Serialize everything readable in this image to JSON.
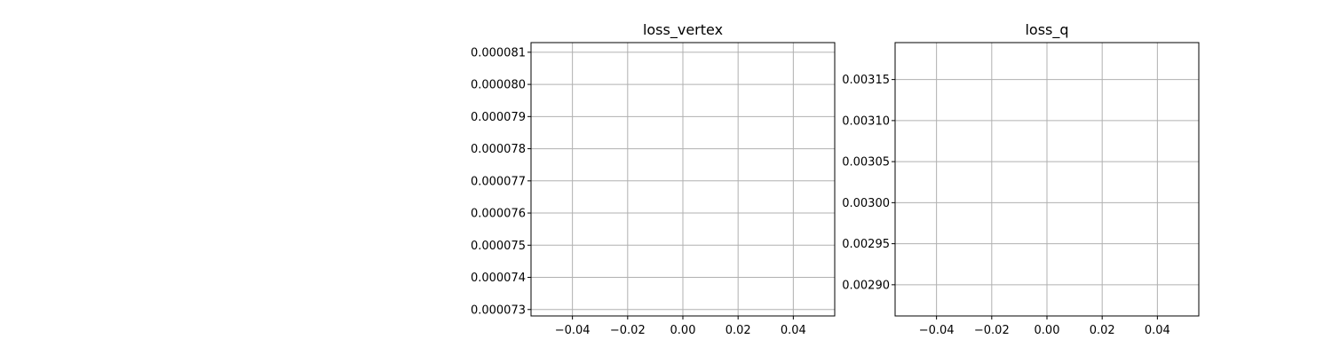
{
  "chart_data": [
    {
      "type": "line",
      "title": "loss_vertex",
      "xlabel": "",
      "ylabel": "",
      "grid": true,
      "xlim": [
        -0.055,
        0.055
      ],
      "ylim": [
        7.28e-05,
        8.13e-05
      ],
      "x_ticks": [
        -0.04,
        -0.02,
        0.0,
        0.02,
        0.04
      ],
      "x_tick_labels": [
        "−0.04",
        "−0.02",
        "0.00",
        "0.02",
        "0.04"
      ],
      "y_ticks": [
        7.3e-05,
        7.4e-05,
        7.5e-05,
        7.6e-05,
        7.7e-05,
        7.8e-05,
        7.9e-05,
        8e-05,
        8.1e-05
      ],
      "y_tick_labels": [
        "0.000073",
        "0.000074",
        "0.000075",
        "0.000076",
        "0.000077",
        "0.000078",
        "0.000079",
        "0.000080",
        "0.000081"
      ],
      "series": []
    },
    {
      "type": "line",
      "title": "loss_q",
      "xlabel": "",
      "ylabel": "",
      "grid": true,
      "xlim": [
        -0.055,
        0.055
      ],
      "ylim": [
        0.002862,
        0.003195
      ],
      "x_ticks": [
        -0.04,
        -0.02,
        0.0,
        0.02,
        0.04
      ],
      "x_tick_labels": [
        "−0.04",
        "−0.02",
        "0.00",
        "0.02",
        "0.04"
      ],
      "y_ticks": [
        0.0029,
        0.00295,
        0.003,
        0.00305,
        0.0031,
        0.00315
      ],
      "y_tick_labels": [
        "0.00290",
        "0.00295",
        "0.00300",
        "0.00305",
        "0.00310",
        "0.00315"
      ],
      "series": []
    }
  ]
}
